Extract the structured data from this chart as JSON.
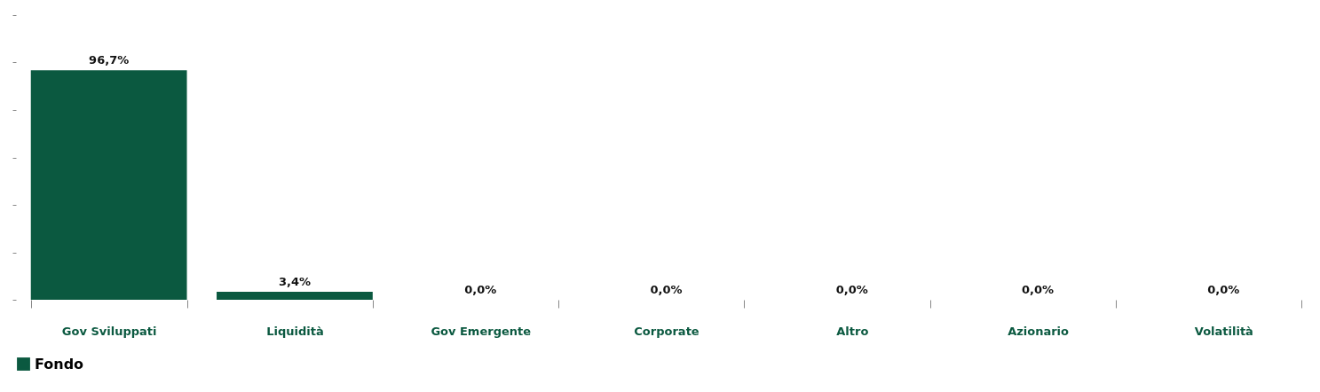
{
  "chart_data": {
    "type": "bar",
    "categories": [
      "Gov Sviluppati",
      "Liquidità",
      "Gov Emergente",
      "Corporate",
      "Altro",
      "Azionario",
      "Volatilità"
    ],
    "series": [
      {
        "name": "Fondo",
        "color": "#0b5940",
        "values": [
          96.7,
          3.4,
          0,
          0,
          0,
          0,
          0
        ],
        "value_labels": [
          "96,7%",
          "3,4%",
          "0,0%",
          "0,0%",
          "0,0%",
          "0,0%",
          "0,0%"
        ]
      }
    ],
    "yticks": [
      {
        "value": 0,
        "label": null
      },
      {
        "value": 20,
        "label": null
      },
      {
        "value": 40,
        "label": null
      },
      {
        "value": 60,
        "label": null
      },
      {
        "value": 80,
        "label": null
      },
      {
        "value": 100,
        "label": null
      },
      {
        "value": 120,
        "label": null
      }
    ],
    "tick_labels": "x",
    "grid": false,
    "legend": "bottom"
  }
}
